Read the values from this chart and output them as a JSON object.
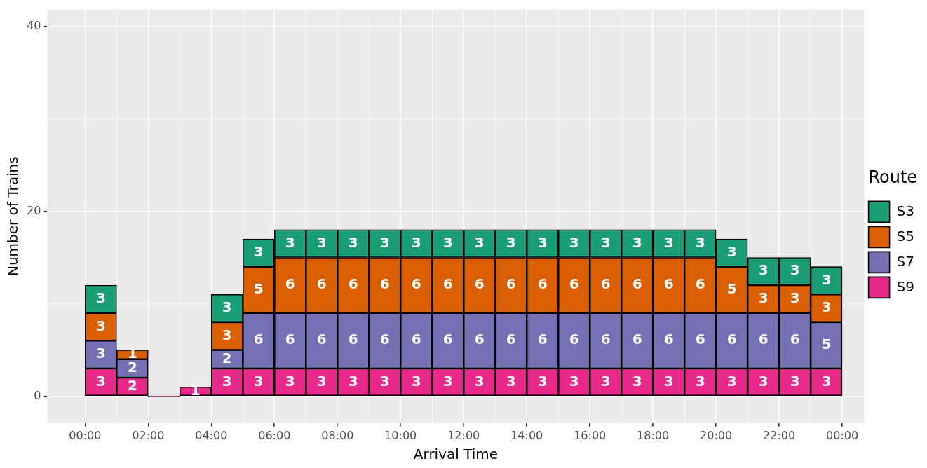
{
  "chart_data": {
    "type": "bar",
    "stacked": true,
    "xlabel": "Arrival Time",
    "ylabel": "Number of Trains",
    "legend_title": "Route",
    "legend": "right",
    "grid": true,
    "x": [
      0.5,
      1.5,
      2.5,
      3.5,
      4.5,
      5.5,
      6.5,
      7.5,
      8.5,
      9.5,
      10.5,
      11.5,
      12.5,
      13.5,
      14.5,
      15.5,
      16.5,
      17.5,
      18.5,
      19.5,
      20.5,
      21.5,
      22.5,
      23.5
    ],
    "xlim": [
      -1.2,
      24.7
    ],
    "xticks": [
      {
        "value": 0,
        "label": "00:00"
      },
      {
        "value": 1,
        "label": null
      },
      {
        "value": 2,
        "label": "02:00"
      },
      {
        "value": 3,
        "label": null
      },
      {
        "value": 4,
        "label": "04:00"
      },
      {
        "value": 5,
        "label": null
      },
      {
        "value": 6,
        "label": "06:00"
      },
      {
        "value": 7,
        "label": null
      },
      {
        "value": 8,
        "label": "08:00"
      },
      {
        "value": 9,
        "label": null
      },
      {
        "value": 10,
        "label": "10:00"
      },
      {
        "value": 11,
        "label": null
      },
      {
        "value": 12,
        "label": "12:00"
      },
      {
        "value": 13,
        "label": null
      },
      {
        "value": 14,
        "label": "14:00"
      },
      {
        "value": 15,
        "label": null
      },
      {
        "value": 16,
        "label": "16:00"
      },
      {
        "value": 17,
        "label": null
      },
      {
        "value": 18,
        "label": "18:00"
      },
      {
        "value": 19,
        "label": null
      },
      {
        "value": 20,
        "label": "20:00"
      },
      {
        "value": 21,
        "label": null
      },
      {
        "value": 22,
        "label": "22:00"
      },
      {
        "value": 23,
        "label": null
      },
      {
        "value": 24,
        "label": "00:00"
      }
    ],
    "ylim": [
      -2.9,
      41.8
    ],
    "yticks": [
      0,
      {
        "value": 10,
        "label": null
      },
      20,
      {
        "value": 30,
        "label": null
      },
      40
    ],
    "series": [
      {
        "name": "S9",
        "color": "#e7298a",
        "values": [
          3,
          2,
          0,
          1,
          3,
          3,
          3,
          3,
          3,
          3,
          3,
          3,
          3,
          3,
          3,
          3,
          3,
          3,
          3,
          3,
          3,
          3,
          3,
          3
        ],
        "value_labels": [
          "3",
          "2",
          null,
          "1",
          "3",
          "3",
          "3",
          "3",
          "3",
          "3",
          "3",
          "3",
          "3",
          "3",
          "3",
          "3",
          "3",
          "3",
          "3",
          "3",
          "3",
          "3",
          "3",
          "3"
        ]
      },
      {
        "name": "S7",
        "color": "#7570b3",
        "values": [
          3,
          2,
          null,
          null,
          2,
          6,
          6,
          6,
          6,
          6,
          6,
          6,
          6,
          6,
          6,
          6,
          6,
          6,
          6,
          6,
          6,
          6,
          6,
          5
        ],
        "value_labels": [
          "3",
          "2",
          null,
          null,
          "2",
          "6",
          "6",
          "6",
          "6",
          "6",
          "6",
          "6",
          "6",
          "6",
          "6",
          "6",
          "6",
          "6",
          "6",
          "6",
          "6",
          "6",
          "6",
          "5"
        ]
      },
      {
        "name": "S5",
        "color": "#d95f02",
        "values": [
          3,
          1,
          null,
          null,
          3,
          5,
          6,
          6,
          6,
          6,
          6,
          6,
          6,
          6,
          6,
          6,
          6,
          6,
          6,
          6,
          5,
          3,
          3,
          3
        ],
        "value_labels": [
          "3",
          "1",
          null,
          null,
          "3",
          "5",
          "6",
          "6",
          "6",
          "6",
          "6",
          "6",
          "6",
          "6",
          "6",
          "6",
          "6",
          "6",
          "6",
          "6",
          "5",
          "3",
          "3",
          "3"
        ]
      },
      {
        "name": "S3",
        "color": "#1b9e77",
        "values": [
          3,
          null,
          null,
          null,
          3,
          3,
          3,
          3,
          3,
          3,
          3,
          3,
          3,
          3,
          3,
          3,
          3,
          3,
          3,
          3,
          3,
          3,
          3,
          3
        ],
        "value_labels": [
          "3",
          null,
          null,
          null,
          "3",
          "3",
          "3",
          "3",
          "3",
          "3",
          "3",
          "3",
          "3",
          "3",
          "3",
          "3",
          "3",
          "3",
          "3",
          "3",
          "3",
          "3",
          "3",
          "3"
        ]
      }
    ]
  }
}
